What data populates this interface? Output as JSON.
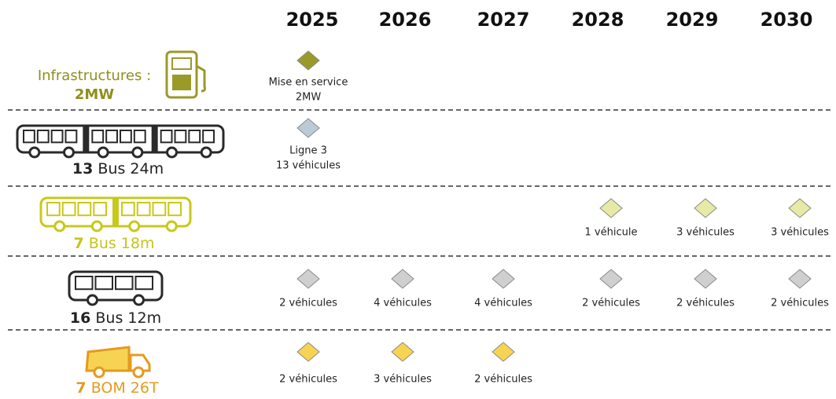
{
  "years": [
    "2025",
    "2026",
    "2027",
    "2028",
    "2029",
    "2030"
  ],
  "rows": [
    {
      "label": [
        "Infrastructures :",
        "2MW"
      ],
      "milestones": [
        [
          "Mise en service",
          "2MW"
        ],
        null,
        null,
        null,
        null,
        null
      ]
    },
    {
      "count": "13",
      "label": "Bus 24m",
      "milestones": [
        [
          "Ligne 3",
          "13 véhicules"
        ],
        null,
        null,
        null,
        null,
        null
      ]
    },
    {
      "count": "7",
      "label": "Bus 18m",
      "milestones": [
        null,
        null,
        null,
        [
          "1 véhicule"
        ],
        [
          "3 véhicules"
        ],
        [
          "3 véhicules"
        ]
      ]
    },
    {
      "count": "16",
      "label": "Bus 12m",
      "milestones": [
        [
          "2 véhicules"
        ],
        [
          "4 véhicules"
        ],
        [
          "4 véhicules"
        ],
        [
          "2 véhicules"
        ],
        [
          "2 véhicules"
        ],
        [
          "2 véhicules"
        ]
      ]
    },
    {
      "count": "7",
      "label": "BOM 26T",
      "milestones": [
        [
          "2 véhicules"
        ],
        [
          "3 véhicules"
        ],
        [
          "2 véhicules"
        ],
        null,
        null,
        null
      ]
    }
  ]
}
